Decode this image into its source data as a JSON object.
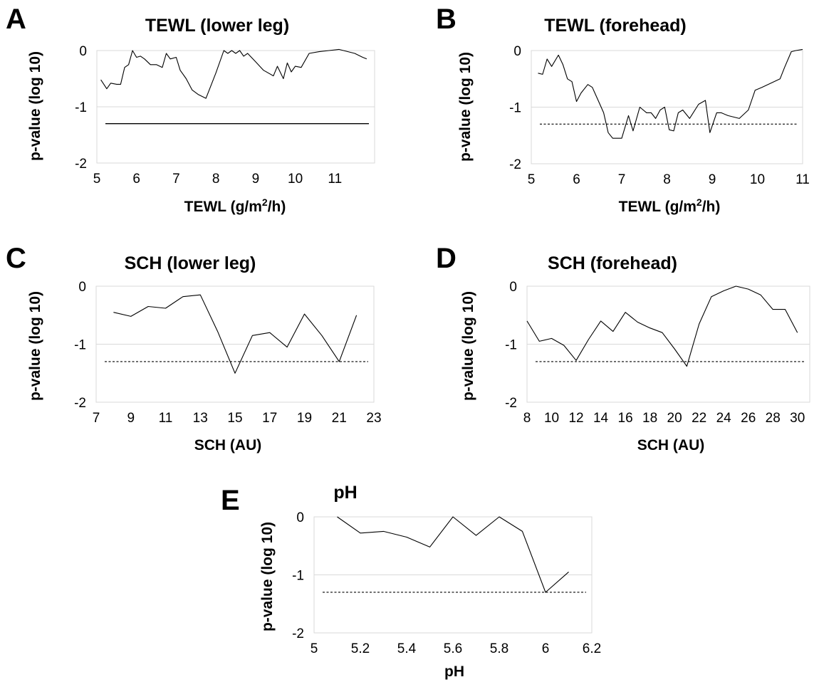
{
  "chart_data": [
    {
      "panel": "A",
      "type": "line",
      "title": "TEWL (lower leg)",
      "xlabel": "TEWL (g/m",
      "xlabel_sup": "2",
      "xlabel_tail": "/h)",
      "ylabel": "p-value (log 10)",
      "xlim": [
        5,
        12
      ],
      "ylim": [
        -2,
        0
      ],
      "xticks": [
        "5",
        "6",
        "7",
        "8",
        "9",
        "10",
        "11"
      ],
      "yticks": [
        "0",
        "-1",
        "-2"
      ],
      "threshold": -1.3,
      "threshold_style": "solid",
      "grid": true,
      "x": [
        5.1,
        5.25,
        5.35,
        5.5,
        5.6,
        5.7,
        5.8,
        5.9,
        6.0,
        6.1,
        6.2,
        6.35,
        6.5,
        6.65,
        6.75,
        6.85,
        7.0,
        7.1,
        7.25,
        7.4,
        7.55,
        7.75,
        8.0,
        8.2,
        8.3,
        8.4,
        8.5,
        8.6,
        8.7,
        8.8,
        9.0,
        9.2,
        9.45,
        9.55,
        9.7,
        9.8,
        9.9,
        10.0,
        10.15,
        10.35,
        10.6,
        10.85,
        11.1,
        11.5,
        11.7,
        11.8
      ],
      "y": [
        -0.52,
        -0.68,
        -0.58,
        -0.6,
        -0.6,
        -0.3,
        -0.25,
        0.0,
        -0.12,
        -0.1,
        -0.15,
        -0.25,
        -0.25,
        -0.3,
        -0.05,
        -0.15,
        -0.12,
        -0.35,
        -0.5,
        -0.7,
        -0.78,
        -0.85,
        -0.4,
        0.0,
        -0.05,
        0.0,
        -0.05,
        0.0,
        -0.1,
        -0.05,
        -0.2,
        -0.35,
        -0.45,
        -0.28,
        -0.5,
        -0.22,
        -0.38,
        -0.28,
        -0.3,
        -0.05,
        -0.02,
        0.0,
        0.02,
        -0.05,
        -0.12,
        -0.15
      ]
    },
    {
      "panel": "B",
      "type": "line",
      "title": "TEWL (forehead)",
      "xlabel": "TEWL (g/m",
      "xlabel_sup": "2",
      "xlabel_tail": "/h)",
      "ylabel": "p-value (log 10)",
      "xlim": [
        5,
        11
      ],
      "ylim": [
        -2,
        0
      ],
      "xticks": [
        "5",
        "6",
        "7",
        "8",
        "9",
        "10",
        "11"
      ],
      "yticks": [
        "0",
        "-1",
        "-2"
      ],
      "threshold": -1.3,
      "threshold_style": "dashed",
      "grid": true,
      "x": [
        5.15,
        5.25,
        5.35,
        5.45,
        5.6,
        5.7,
        5.8,
        5.9,
        6.0,
        6.1,
        6.25,
        6.35,
        6.5,
        6.6,
        6.7,
        6.8,
        6.95,
        7.0,
        7.15,
        7.25,
        7.4,
        7.55,
        7.65,
        7.75,
        7.85,
        7.95,
        8.05,
        8.15,
        8.25,
        8.35,
        8.5,
        8.7,
        8.85,
        8.95,
        9.1,
        9.2,
        9.35,
        9.6,
        9.8,
        9.95,
        10.1,
        10.5,
        10.6,
        10.75,
        10.85,
        11.0
      ],
      "y": [
        -0.4,
        -0.42,
        -0.15,
        -0.28,
        -0.08,
        -0.25,
        -0.5,
        -0.55,
        -0.9,
        -0.75,
        -0.6,
        -0.65,
        -0.92,
        -1.1,
        -1.45,
        -1.55,
        -1.55,
        -1.55,
        -1.15,
        -1.42,
        -1.0,
        -1.1,
        -1.1,
        -1.2,
        -1.05,
        -1.0,
        -1.4,
        -1.42,
        -1.1,
        -1.05,
        -1.2,
        -0.95,
        -0.88,
        -1.45,
        -1.1,
        -1.1,
        -1.15,
        -1.2,
        -1.05,
        -0.7,
        -0.65,
        -0.5,
        -0.3,
        -0.02,
        0.0,
        0.02
      ]
    },
    {
      "panel": "C",
      "type": "line",
      "title": "SCH (lower leg)",
      "xlabel": "SCH (AU)",
      "ylabel": "p-value (log 10)",
      "xlim": [
        7,
        23
      ],
      "ylim": [
        -2,
        0
      ],
      "xticks": [
        "7",
        "9",
        "11",
        "13",
        "15",
        "17",
        "19",
        "21",
        "23"
      ],
      "yticks": [
        "0",
        "-1",
        "-2"
      ],
      "threshold": -1.3,
      "threshold_style": "dashed",
      "grid": true,
      "x": [
        8,
        9,
        10,
        11,
        12,
        13,
        14,
        15,
        16,
        17,
        18,
        19,
        20,
        21,
        22
      ],
      "y": [
        -0.45,
        -0.52,
        -0.35,
        -0.38,
        -0.18,
        -0.15,
        -0.78,
        -1.5,
        -0.85,
        -0.8,
        -1.05,
        -0.48,
        -0.85,
        -1.3,
        -0.5
      ]
    },
    {
      "panel": "D",
      "type": "line",
      "title": "SCH (forehead)",
      "xlabel": "SCH (AU)",
      "ylabel": "p-value (log 10)",
      "xlim": [
        8,
        31
      ],
      "ylim": [
        -2,
        0
      ],
      "xticks": [
        "8",
        "10",
        "12",
        "14",
        "16",
        "18",
        "20",
        "22",
        "24",
        "26",
        "28",
        "30"
      ],
      "yticks": [
        "0",
        "-1",
        "-2"
      ],
      "threshold": -1.3,
      "threshold_style": "dashed",
      "grid": true,
      "x": [
        8,
        9,
        10,
        11,
        12,
        13,
        14,
        15,
        16,
        17,
        18,
        19,
        20,
        21,
        22,
        23,
        24,
        25,
        26,
        27,
        28,
        29,
        30
      ],
      "y": [
        -0.6,
        -0.95,
        -0.9,
        -1.02,
        -1.28,
        -0.92,
        -0.6,
        -0.78,
        -0.45,
        -0.62,
        -0.72,
        -0.8,
        -1.08,
        -1.38,
        -0.65,
        -0.18,
        -0.08,
        0.0,
        -0.05,
        -0.15,
        -0.4,
        -0.4,
        -0.8
      ]
    },
    {
      "panel": "E",
      "type": "line",
      "title": "pH",
      "xlabel": "pH",
      "ylabel": "p-value (log 10)",
      "xlim": [
        5,
        6.2
      ],
      "ylim": [
        -2,
        0
      ],
      "xticks": [
        "5",
        "5.2",
        "5.4",
        "5.6",
        "5.8",
        "6",
        "6.2"
      ],
      "yticks": [
        "0",
        "-1",
        "-2"
      ],
      "threshold": -1.3,
      "threshold_style": "dashed",
      "grid": true,
      "x": [
        5.1,
        5.2,
        5.3,
        5.4,
        5.5,
        5.6,
        5.7,
        5.8,
        5.9,
        6.0,
        6.1
      ],
      "y": [
        0.0,
        -0.28,
        -0.25,
        -0.35,
        -0.52,
        0.0,
        -0.32,
        0.0,
        -0.25,
        -1.3,
        -0.95
      ]
    }
  ]
}
